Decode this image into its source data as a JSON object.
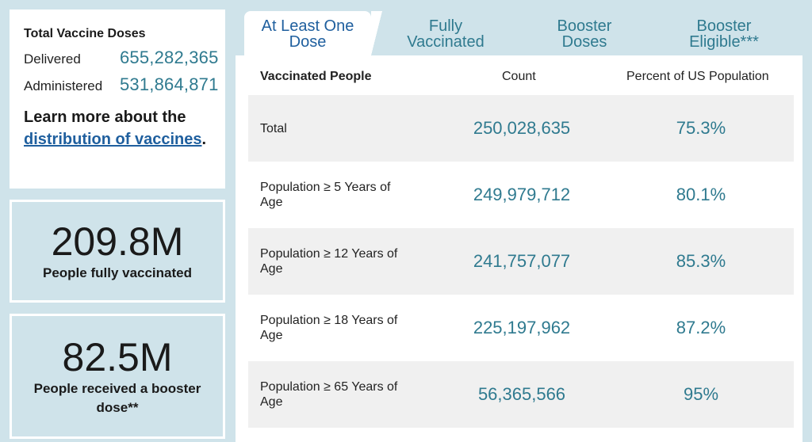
{
  "doses": {
    "title": "Total Vaccine Doses",
    "delivered_label": "Delivered",
    "delivered_value": "655,282,365",
    "administered_label": "Administered",
    "administered_value": "531,864,871",
    "learn_prefix": "Learn more about the ",
    "learn_link": "distribution of vaccines",
    "learn_suffix": "."
  },
  "stats": [
    {
      "value": "209.8M",
      "label": "People fully vaccinated"
    },
    {
      "value": "82.5M",
      "label": "People received a booster dose**"
    }
  ],
  "tabs": [
    {
      "label": "At Least One Dose",
      "active": true
    },
    {
      "label": "Fully Vaccinated",
      "active": false
    },
    {
      "label": "Booster Doses",
      "active": false
    },
    {
      "label": "Booster Eligible***",
      "active": false
    }
  ],
  "table": {
    "headers": {
      "people": "Vaccinated People",
      "count": "Count",
      "percent": "Percent of US Population"
    },
    "rows": [
      {
        "label": "Total",
        "count": "250,028,635",
        "percent": "75.3%"
      },
      {
        "label": "Population ≥ 5 Years of Age",
        "count": "249,979,712",
        "percent": "80.1%"
      },
      {
        "label": "Population ≥ 12 Years of Age",
        "count": "241,757,077",
        "percent": "85.3%"
      },
      {
        "label": "Population ≥ 18 Years of Age",
        "count": "225,197,962",
        "percent": "87.2%"
      },
      {
        "label": "Population ≥ 65 Years of Age",
        "count": "56,365,566",
        "percent": "95%"
      }
    ]
  },
  "colors": {
    "background": "#cfe3ea",
    "accent": "#2f7a8f",
    "link": "#1f5f9e",
    "row_shade": "#f0f0f0"
  }
}
